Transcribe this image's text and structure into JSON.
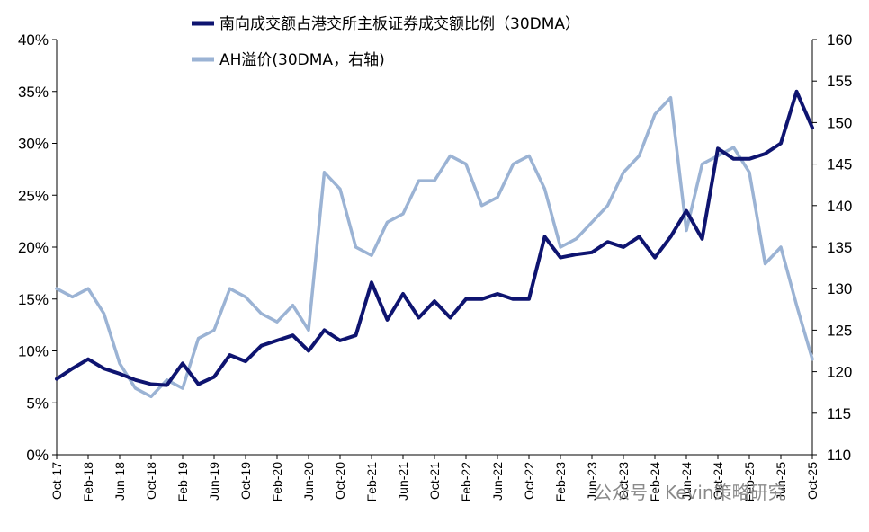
{
  "chart_data": {
    "type": "line",
    "title": "",
    "watermark": "公众号 · Kevin策略研究",
    "x": [
      "Oct-17",
      "Dec-17",
      "Feb-18",
      "Apr-18",
      "Jun-18",
      "Aug-18",
      "Oct-18",
      "Dec-18",
      "Feb-19",
      "Apr-19",
      "Jun-19",
      "Aug-19",
      "Oct-19",
      "Dec-19",
      "Feb-20",
      "Apr-20",
      "Jun-20",
      "Aug-20",
      "Oct-20",
      "Dec-20",
      "Feb-21",
      "Apr-21",
      "Jun-21",
      "Aug-21",
      "Oct-21",
      "Dec-21",
      "Feb-22",
      "Apr-22",
      "Jun-22",
      "Aug-22",
      "Oct-22",
      "Dec-22",
      "Feb-23",
      "Apr-23",
      "Jun-23",
      "Aug-23",
      "Oct-23",
      "Dec-23",
      "Feb-24",
      "Apr-24",
      "Jun-24",
      "Aug-24",
      "Oct-24",
      "Dec-24",
      "Feb-25",
      "Apr-25",
      "Jun-25",
      "Aug-25",
      "Oct-25"
    ],
    "x_tick_labels": [
      "Oct-17",
      "Feb-18",
      "Jun-18",
      "Oct-18",
      "Feb-19",
      "Jun-19",
      "Oct-19",
      "Feb-20",
      "Jun-20",
      "Oct-20",
      "Feb-21",
      "Jun-21",
      "Oct-21",
      "Feb-22",
      "Jun-22",
      "Oct-22",
      "Feb-23",
      "Jun-23",
      "Oct-23",
      "Feb-24",
      "Jun-24",
      "Oct-24",
      "Feb-25",
      "Jun-25",
      "Oct-25"
    ],
    "y_left": {
      "min": 0,
      "max": 40,
      "step": 5,
      "tick_labels": [
        "0%",
        "5%",
        "10%",
        "15%",
        "20%",
        "25%",
        "30%",
        "35%",
        "40%"
      ]
    },
    "y_right": {
      "min": 110,
      "max": 160,
      "step": 5,
      "tick_labels": [
        "110",
        "115",
        "120",
        "125",
        "130",
        "135",
        "140",
        "145",
        "150",
        "155",
        "160"
      ]
    },
    "series": [
      {
        "name": "南向成交额占港交所主板证券成交额比例（30DMA）",
        "axis": "left",
        "unit": "%",
        "color": "#0e1470",
        "values": [
          7.3,
          8.3,
          9.2,
          8.3,
          7.8,
          7.2,
          6.8,
          6.7,
          8.8,
          6.8,
          7.5,
          9.6,
          9.0,
          10.5,
          11.0,
          11.5,
          10.0,
          12.0,
          11.0,
          11.5,
          16.6,
          13.0,
          15.5,
          13.2,
          14.8,
          13.2,
          15.0,
          15.0,
          15.5,
          15.0,
          15.0,
          21.0,
          19.0,
          19.3,
          19.5,
          20.5,
          20.0,
          21.0,
          19.0,
          21.0,
          23.5,
          20.8,
          29.5,
          28.5,
          28.5,
          29.0,
          30.0,
          35.0,
          31.5
        ]
      },
      {
        "name": "AH溢价(30DMA，右轴)",
        "axis": "right",
        "unit": "",
        "color": "#9bb3d4",
        "values": [
          130,
          129,
          130,
          127,
          121,
          118,
          117,
          119,
          118,
          124,
          125,
          130,
          129,
          127,
          126,
          128,
          125,
          144,
          142,
          135,
          134,
          138,
          139,
          143,
          143,
          146,
          145,
          140,
          141,
          145,
          146,
          142,
          135,
          136,
          138,
          140,
          144,
          146,
          151,
          153,
          137,
          145,
          146,
          147,
          144,
          133,
          135,
          128,
          121.5
        ]
      }
    ]
  }
}
